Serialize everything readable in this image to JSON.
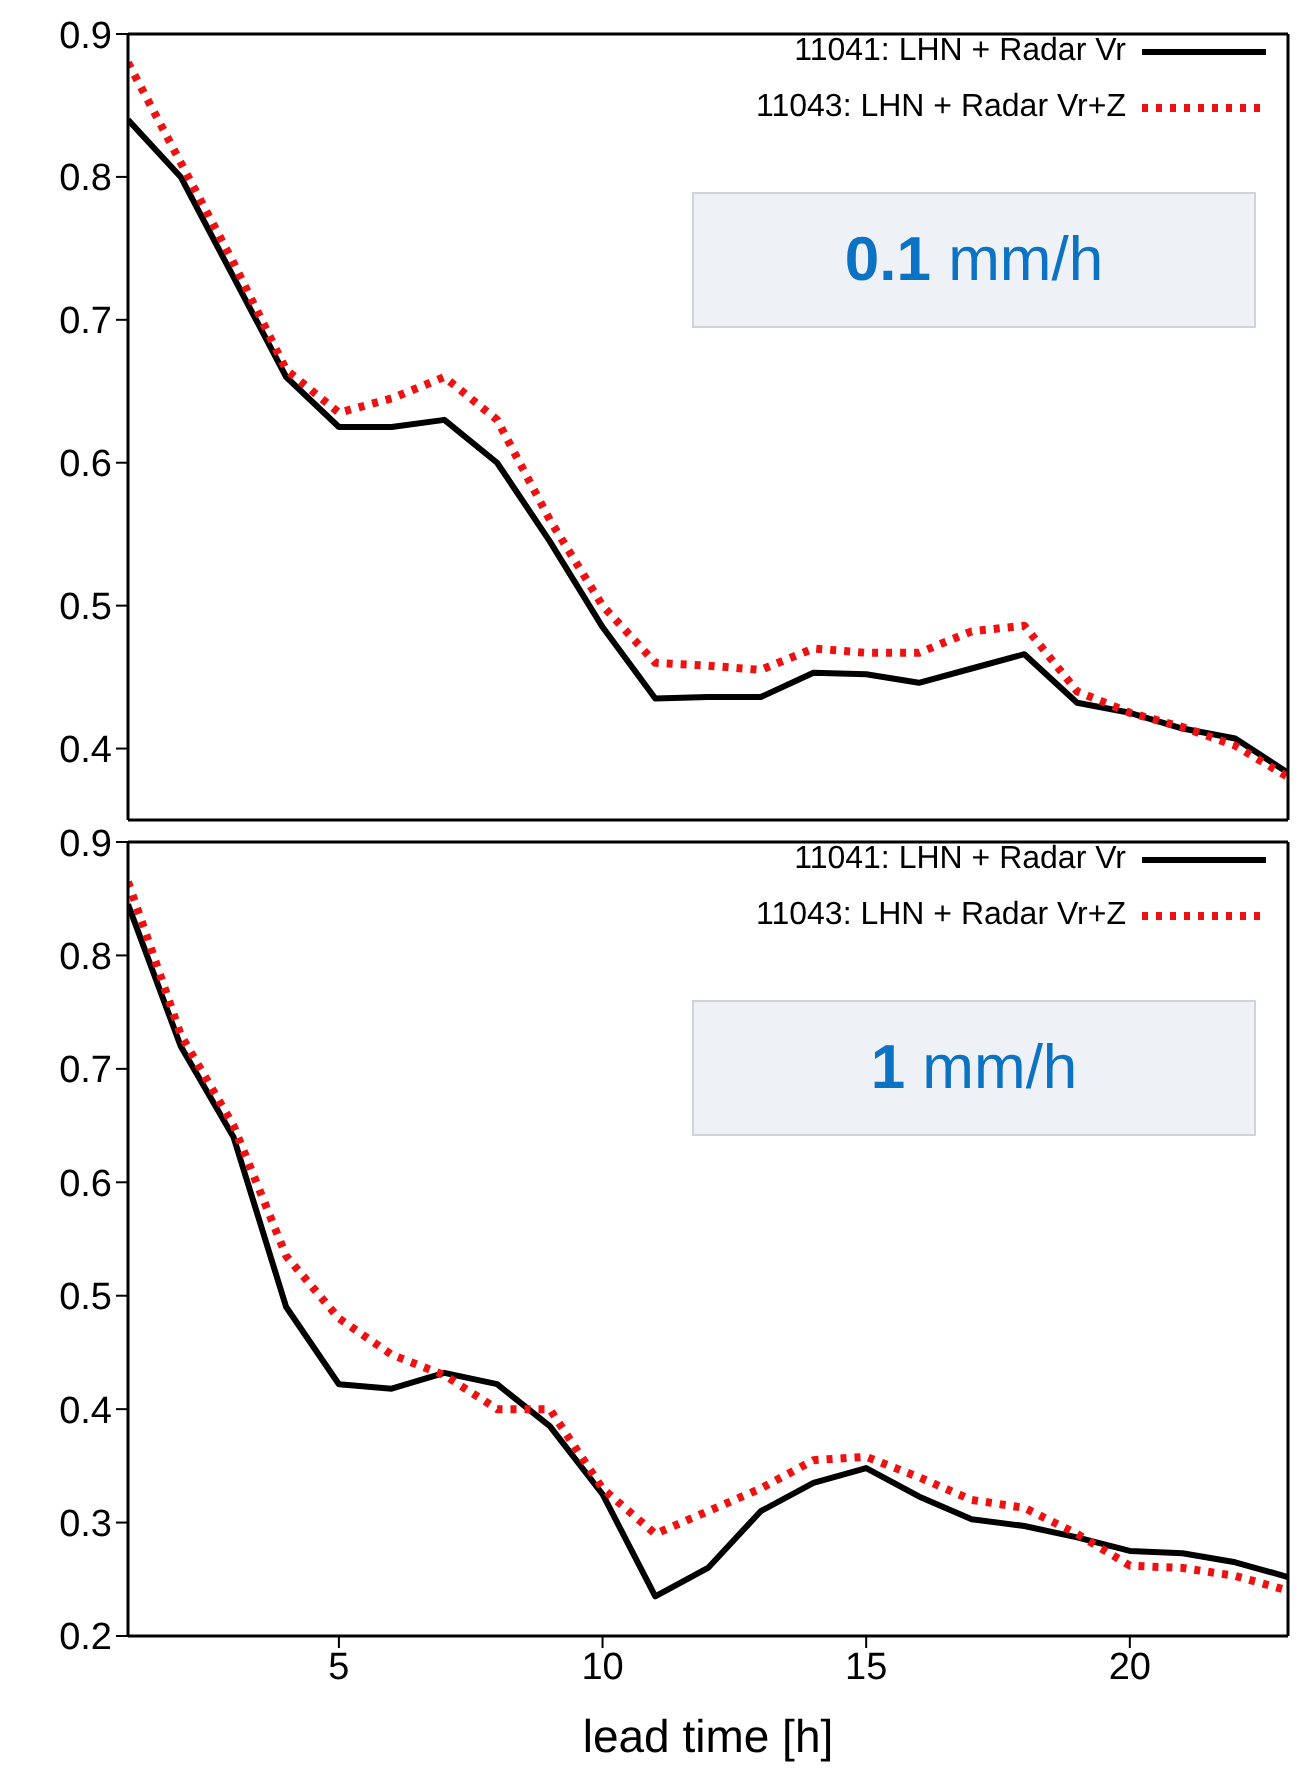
{
  "chart_data": [
    {
      "type": "line",
      "x": [
        1,
        2,
        3,
        4,
        5,
        6,
        7,
        8,
        9,
        10,
        11,
        12,
        13,
        14,
        15,
        16,
        17,
        18,
        19,
        20,
        21,
        22,
        23
      ],
      "xlim": [
        1,
        23
      ],
      "xticks": [
        5,
        10,
        15,
        20
      ],
      "ylim": [
        0.35,
        0.9
      ],
      "yticks": [
        0.4,
        0.5,
        0.6,
        0.7,
        0.8,
        0.9
      ],
      "tick_labels": "y",
      "legend": "top right",
      "marker": "none",
      "grid": false,
      "annotations": [
        "0.1 mm/h"
      ],
      "series": [
        {
          "name": "11041: LHN + Radar Vr",
          "color": "#000000",
          "line_style": "solid",
          "values": [
            0.84,
            0.8,
            0.73,
            0.66,
            0.625,
            0.625,
            0.63,
            0.6,
            0.545,
            0.485,
            0.435,
            0.436,
            0.436,
            0.453,
            0.452,
            0.446,
            0.456,
            0.466,
            0.432,
            0.425,
            0.414,
            0.407,
            0.383
          ]
        },
        {
          "name": "11043: LHN + Radar Vr+Z",
          "color": "#ee1111",
          "line_style": "dotted",
          "values": [
            0.88,
            0.81,
            0.74,
            0.665,
            0.635,
            0.645,
            0.66,
            0.63,
            0.56,
            0.5,
            0.46,
            0.458,
            0.455,
            0.47,
            0.467,
            0.467,
            0.482,
            0.486,
            0.44,
            0.425,
            0.415,
            0.402,
            0.38
          ]
        }
      ]
    },
    {
      "type": "line",
      "x": [
        1,
        2,
        3,
        4,
        5,
        6,
        7,
        8,
        9,
        10,
        11,
        12,
        13,
        14,
        15,
        16,
        17,
        18,
        19,
        20,
        21,
        22,
        23
      ],
      "xlim": [
        1,
        23
      ],
      "xticks": [
        5,
        10,
        15,
        20
      ],
      "ylim": [
        0.2,
        0.9
      ],
      "yticks": [
        0.2,
        0.3,
        0.4,
        0.5,
        0.6,
        0.7,
        0.8,
        0.9
      ],
      "xlabel": "lead time  [h]",
      "legend": "top right",
      "marker": "none",
      "grid": false,
      "annotations": [
        "1 mm/h"
      ],
      "series": [
        {
          "name": "11041: LHN + Radar Vr",
          "color": "#000000",
          "line_style": "solid",
          "values": [
            0.845,
            0.72,
            0.64,
            0.49,
            0.422,
            0.418,
            0.432,
            0.422,
            0.385,
            0.325,
            0.235,
            0.26,
            0.31,
            0.335,
            0.348,
            0.323,
            0.303,
            0.297,
            0.287,
            0.275,
            0.273,
            0.265,
            0.252
          ]
        },
        {
          "name": "11043: LHN + Radar Vr+Z",
          "color": "#ee1111",
          "line_style": "dotted",
          "values": [
            0.865,
            0.73,
            0.65,
            0.535,
            0.48,
            0.448,
            0.43,
            0.4,
            0.4,
            0.33,
            0.29,
            0.31,
            0.33,
            0.355,
            0.358,
            0.34,
            0.32,
            0.313,
            0.29,
            0.262,
            0.26,
            0.253,
            0.24
          ]
        }
      ]
    }
  ]
}
